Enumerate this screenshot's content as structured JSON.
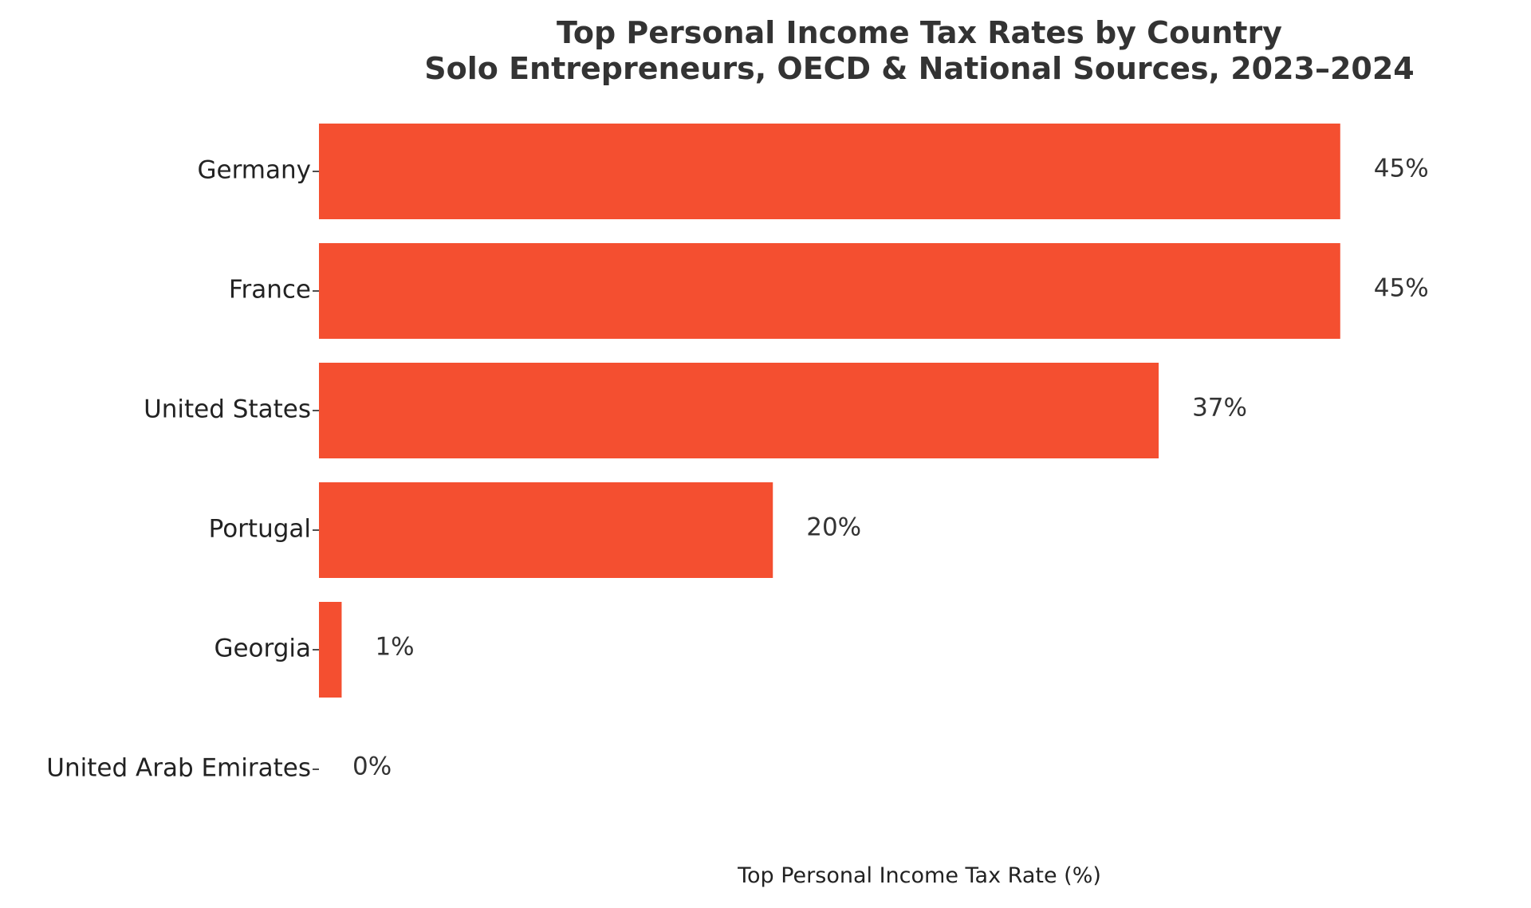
{
  "chart_data": {
    "type": "bar",
    "orientation": "horizontal",
    "title": "Top Personal Income Tax Rates by Country",
    "subtitle": "Solo Entrepreneurs, OECD & National Sources, 2023–2024",
    "categories": [
      "Germany",
      "France",
      "United States",
      "Portugal",
      "Georgia",
      "United Arab Emirates"
    ],
    "values": [
      45,
      45,
      37,
      20,
      1,
      0
    ],
    "value_labels": [
      "45%",
      "45%",
      "37%",
      "20%",
      "1%",
      "0%"
    ],
    "xlabel": "Top Personal Income Tax Rate (%)",
    "ylabel": "",
    "xlim": [
      0,
      52
    ],
    "grid": false,
    "legend": "none",
    "bar_color": "#F44F30"
  }
}
